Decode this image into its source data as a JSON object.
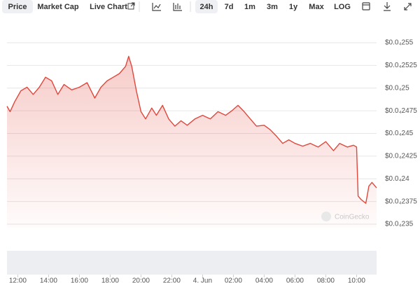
{
  "toolbar": {
    "tabs": [
      "Price",
      "Market Cap",
      "Live Chart"
    ],
    "ranges": [
      "24h",
      "7d",
      "1m",
      "3m",
      "1y",
      "Max",
      "LOG"
    ]
  },
  "watermark": "CoinGecko",
  "chart_data": {
    "type": "line",
    "x": [
      11.3,
      11.5,
      11.8,
      12.2,
      12.6,
      13.0,
      13.4,
      13.8,
      14.2,
      14.6,
      15.0,
      15.5,
      16.0,
      16.5,
      17.0,
      17.4,
      17.8,
      18.2,
      18.6,
      19.0,
      19.2,
      19.4,
      19.7,
      20.0,
      20.3,
      20.7,
      21.0,
      21.4,
      21.8,
      22.2,
      22.6,
      23.0,
      23.5,
      24.0,
      24.5,
      25.0,
      25.5,
      25.9,
      26.3,
      26.7,
      27.1,
      27.5,
      28.0,
      28.4,
      28.8,
      29.2,
      29.6,
      30.0,
      30.5,
      31.0,
      31.5,
      32.0,
      32.5,
      32.9,
      33.4,
      33.8,
      34.0,
      34.1,
      34.3,
      34.6,
      34.8,
      35.0,
      35.3
    ],
    "series": [
      {
        "color": "#e0473c",
        "values": [
          2.48e-05,
          2.474e-05,
          2.485e-05,
          2.497e-05,
          2.501e-05,
          2.493e-05,
          2.501e-05,
          2.512e-05,
          2.508e-05,
          2.493e-05,
          2.504e-05,
          2.498e-05,
          2.501e-05,
          2.506e-05,
          2.489e-05,
          2.501e-05,
          2.508e-05,
          2.512e-05,
          2.516e-05,
          2.524e-05,
          2.535e-05,
          2.524e-05,
          2.497e-05,
          2.474e-05,
          2.466e-05,
          2.478e-05,
          2.47e-05,
          2.481e-05,
          2.466e-05,
          2.458e-05,
          2.464e-05,
          2.459e-05,
          2.466e-05,
          2.47e-05,
          2.466e-05,
          2.474e-05,
          2.47e-05,
          2.475e-05,
          2.481e-05,
          2.474e-05,
          2.466e-05,
          2.458e-05,
          2.459e-05,
          2.454e-05,
          2.447e-05,
          2.439e-05,
          2.443e-05,
          2.439e-05,
          2.436e-05,
          2.439e-05,
          2.435e-05,
          2.441e-05,
          2.431e-05,
          2.439e-05,
          2.435e-05,
          2.437e-05,
          2.435e-05,
          2.381e-05,
          2.377e-05,
          2.373e-05,
          2.392e-05,
          2.396e-05,
          2.39e-05
        ]
      }
    ],
    "xlim": [
      11.3,
      35.3
    ],
    "ylim": [
      2.35e-05,
      2.55e-05
    ],
    "xticks": [
      {
        "value": 12,
        "label": "12:00"
      },
      {
        "value": 14,
        "label": "14:00"
      },
      {
        "value": 16,
        "label": "16:00"
      },
      {
        "value": 18,
        "label": "18:00"
      },
      {
        "value": 20,
        "label": "20:00"
      },
      {
        "value": 22,
        "label": "22:00"
      },
      {
        "value": 24,
        "label": "4. Jun"
      },
      {
        "value": 26,
        "label": "02:00"
      },
      {
        "value": 28,
        "label": "04:00"
      },
      {
        "value": 30,
        "label": "06:00"
      },
      {
        "value": 32,
        "label": "08:00"
      },
      {
        "value": 34,
        "label": "10:00"
      }
    ],
    "yticks": [
      {
        "value": 2.55e-05,
        "label": "$0.0₄255"
      },
      {
        "value": 2.525e-05,
        "label": "$0.0₄2525"
      },
      {
        "value": 2.5e-05,
        "label": "$0.0₄25"
      },
      {
        "value": 2.475e-05,
        "label": "$0.0₄2475"
      },
      {
        "value": 2.45e-05,
        "label": "$0.0₄245"
      },
      {
        "value": 2.425e-05,
        "label": "$0.0₄2425"
      },
      {
        "value": 2.4e-05,
        "label": "$0.0₄24"
      },
      {
        "value": 2.375e-05,
        "label": "$0.0₄2375"
      },
      {
        "value": 2.35e-05,
        "label": "$0.0₄235"
      }
    ],
    "grid": true
  }
}
